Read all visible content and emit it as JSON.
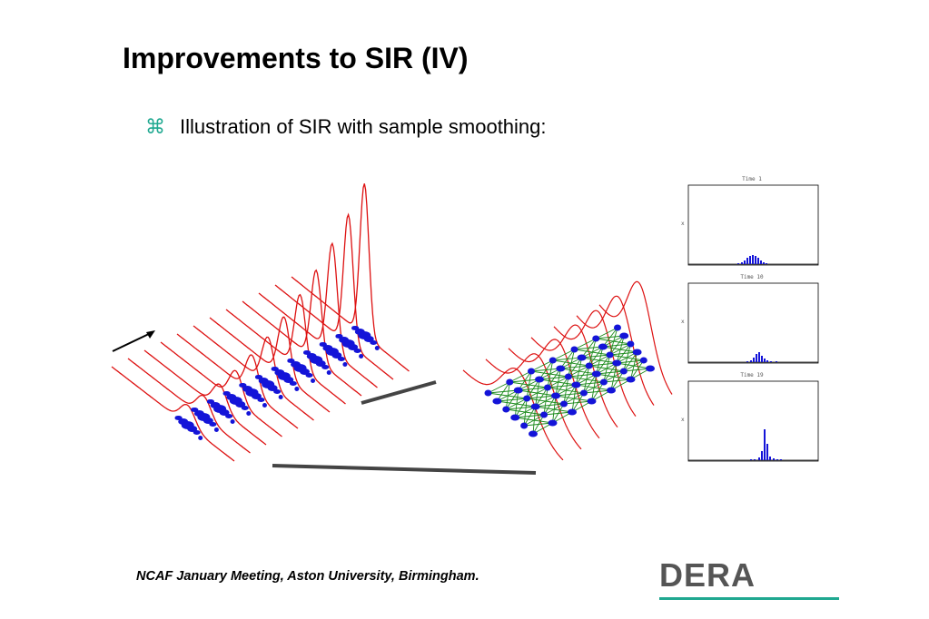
{
  "slide": {
    "title": "Improvements to SIR (IV)",
    "bullet_icon": "command-icon",
    "bullet_text": "Illustration of SIR with sample smoothing:",
    "footer": "NCAF January Meeting, Aston University, Birmingham.",
    "logo_text": "DERA",
    "logo_color": "#555555",
    "logo_underline_color": "#1fa890"
  },
  "panels": [
    {
      "title": "Time  1",
      "ylabel": "x"
    },
    {
      "title": "Time  10",
      "ylabel": "x"
    },
    {
      "title": "Time  19",
      "ylabel": "x"
    }
  ],
  "colors": {
    "density": "#dd1111",
    "particles": "#1414d8",
    "links": "#1a8a1a",
    "axis": "#000000"
  }
}
